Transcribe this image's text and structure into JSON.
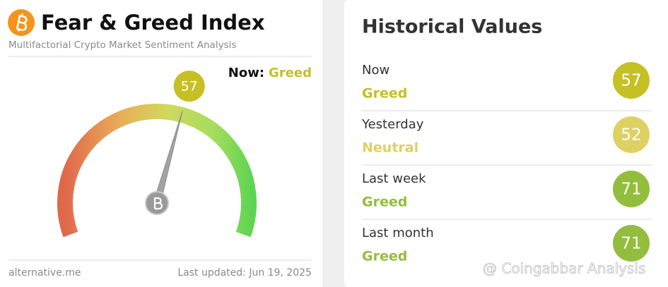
{
  "header": {
    "title": "Fear & Greed Index",
    "subtitle": "Multifactorial Crypto Market Sentiment Analysis"
  },
  "gauge": {
    "value": 57,
    "now_label": "Now:",
    "classification": "Greed",
    "color": "#c5c024"
  },
  "footer": {
    "source": "alternative.me",
    "updated": "Last updated: Jun 19, 2025"
  },
  "historical": {
    "title": "Historical Values",
    "rows": [
      {
        "label": "Now",
        "classification": "Greed",
        "value": 57,
        "color": "#c5c024"
      },
      {
        "label": "Yesterday",
        "classification": "Neutral",
        "value": 52,
        "color": "#dfd063"
      },
      {
        "label": "Last week",
        "classification": "Greed",
        "value": 71,
        "color": "#93bd3d"
      },
      {
        "label": "Last month",
        "classification": "Greed",
        "value": 71,
        "color": "#93bd3d"
      }
    ]
  },
  "watermark": "@ Coingabbar Analysis"
}
